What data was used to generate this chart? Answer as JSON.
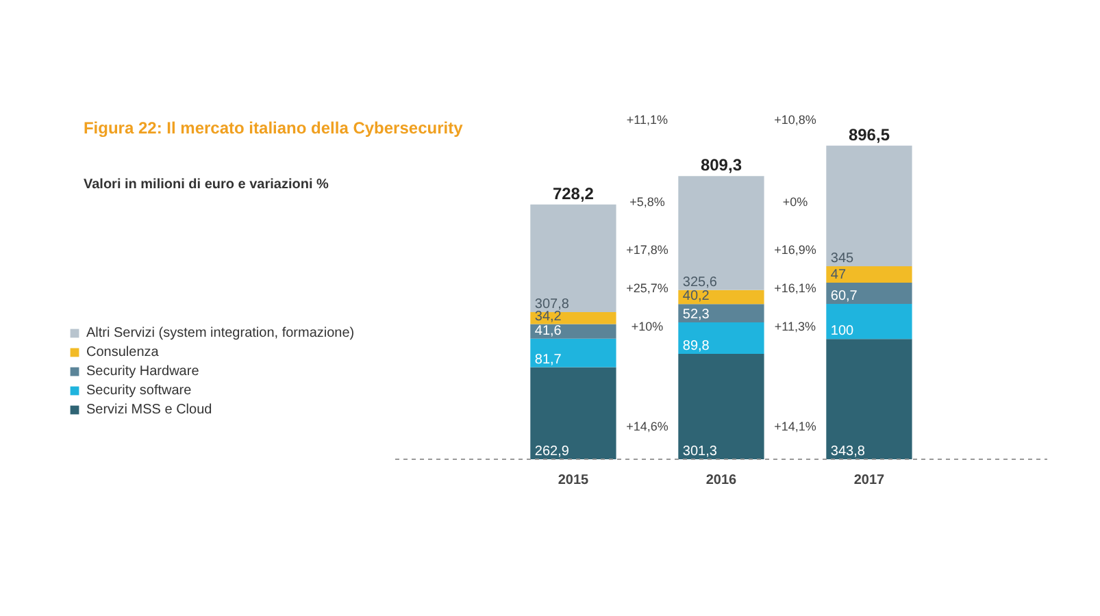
{
  "chart_data": {
    "type": "bar",
    "stacked": true,
    "title": "Figura 22: Il mercato italiano della Cybersecurity",
    "subtitle": "Valori in milioni di euro e variazioni %",
    "categories": [
      "2015",
      "2016",
      "2017"
    ],
    "series": [
      {
        "name": "Servizi MSS e Cloud",
        "color": "#2f6474",
        "values": [
          262.9,
          301.3,
          343.8
        ],
        "value_labels": [
          "262,9",
          "301,3",
          "343,8"
        ]
      },
      {
        "name": "Security software",
        "color": "#1fb4de",
        "values": [
          81.7,
          89.8,
          100
        ],
        "value_labels": [
          "81,7",
          "89,8",
          "100"
        ]
      },
      {
        "name": "Security Hardware",
        "color": "#5b8498",
        "values": [
          41.6,
          52.3,
          60.7
        ],
        "value_labels": [
          "41,6",
          "52,3",
          "60,7"
        ]
      },
      {
        "name": "Consulenza",
        "color": "#f2bb26",
        "values": [
          34.2,
          40.2,
          47
        ],
        "value_labels": [
          "34,2",
          "40,2",
          "47"
        ]
      },
      {
        "name": "Altri Servizi (system integration, formazione)",
        "color": "#b8c4ce",
        "values": [
          307.8,
          325.6,
          345
        ],
        "value_labels": [
          "307,8",
          "325,6",
          "345"
        ]
      }
    ],
    "totals": [
      "728,2",
      "809,3",
      "896,5"
    ],
    "annotations": [
      "+11,1%",
      "+5,8%",
      "+17,8%",
      "+25,7%",
      "+10%",
      "+14,6%",
      "+10,8%",
      "+0%",
      "+16,9%",
      "+16,1%",
      "+11,3%",
      "+14,1%"
    ],
    "legend": "left",
    "grid": false
  }
}
